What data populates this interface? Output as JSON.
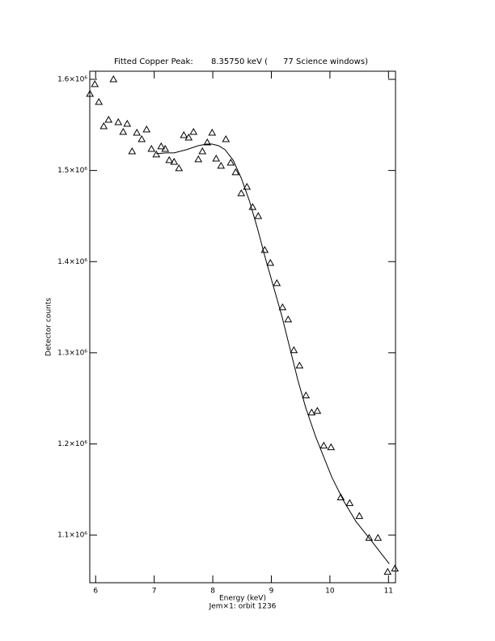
{
  "chart_data": {
    "type": "scatter",
    "title": "Fitted Copper Peak:       8.35750 keV (      77 Science windows)",
    "x_label": "Energy (keV)",
    "subtitle": "Jem×1: orbit 1236",
    "y_label": "Detector counts",
    "color": "#000000",
    "xlim": [
      5.9,
      11.12
    ],
    "ylim": [
      1047700,
      1608900
    ],
    "xticks": [
      6,
      7,
      8,
      9,
      10,
      11
    ],
    "yticks": [
      {
        "value": 1100000,
        "label": "1.1×10⁶"
      },
      {
        "value": 1200000,
        "label": "1.2×10⁶"
      },
      {
        "value": 1300000,
        "label": "1.3×10⁶"
      },
      {
        "value": 1400000,
        "label": "1.4×10⁶"
      },
      {
        "value": 1500000,
        "label": "1.5×10⁶"
      },
      {
        "value": 1600000,
        "label": "1.6×10⁶"
      }
    ],
    "series": [
      {
        "type": "scatter",
        "marker": "triangle",
        "x": [
          5.903,
          5.986,
          6.055,
          6.138,
          6.221,
          6.304,
          6.387,
          6.47,
          6.539,
          6.622,
          6.704,
          6.787,
          6.87,
          6.953,
          7.036,
          7.119,
          7.188,
          7.257,
          7.34,
          7.423,
          7.506,
          7.588,
          7.671,
          7.754,
          7.823,
          7.906,
          7.989,
          8.058,
          8.141,
          8.224,
          8.307,
          8.39,
          8.486,
          8.583,
          8.68,
          8.776,
          8.887,
          8.983,
          9.094,
          9.191,
          9.287,
          9.384,
          9.481,
          9.591,
          9.688,
          9.785,
          9.895,
          10.019,
          10.185,
          10.337,
          10.503,
          10.669,
          10.82,
          10.986,
          11.11
        ],
        "values": [
          1584000,
          1594700,
          1575200,
          1548500,
          1555600,
          1600000,
          1553000,
          1542300,
          1551200,
          1521000,
          1541400,
          1534300,
          1545000,
          1523700,
          1517500,
          1526400,
          1523700,
          1511300,
          1509500,
          1502400,
          1538800,
          1536100,
          1542300,
          1512200,
          1521000,
          1530800,
          1541400,
          1513000,
          1505100,
          1534300,
          1508600,
          1498000,
          1474900,
          1482000,
          1459800,
          1450000,
          1412800,
          1398600,
          1376400,
          1349800,
          1336500,
          1302800,
          1285900,
          1253100,
          1234400,
          1236200,
          1198100,
          1196300,
          1141300,
          1135100,
          1120900,
          1096900,
          1096900,
          1059600,
          1063200
        ]
      },
      {
        "type": "line",
        "x": [
          7.036,
          7.202,
          7.34,
          7.547,
          7.754,
          7.892,
          7.989,
          8.099,
          8.21,
          8.348,
          8.486,
          8.624,
          8.762,
          8.901,
          9.039,
          9.177,
          9.315,
          9.453,
          9.591,
          9.757,
          9.895,
          10.033,
          10.24,
          10.448,
          10.724,
          11.014
        ],
        "values": [
          1518400,
          1519300,
          1519300,
          1522800,
          1527200,
          1529000,
          1529000,
          1527200,
          1522800,
          1511300,
          1491700,
          1466900,
          1436700,
          1403000,
          1372000,
          1340900,
          1305400,
          1269900,
          1238900,
          1207800,
          1185600,
          1163400,
          1136800,
          1114600,
          1092400,
          1068400
        ]
      }
    ]
  }
}
